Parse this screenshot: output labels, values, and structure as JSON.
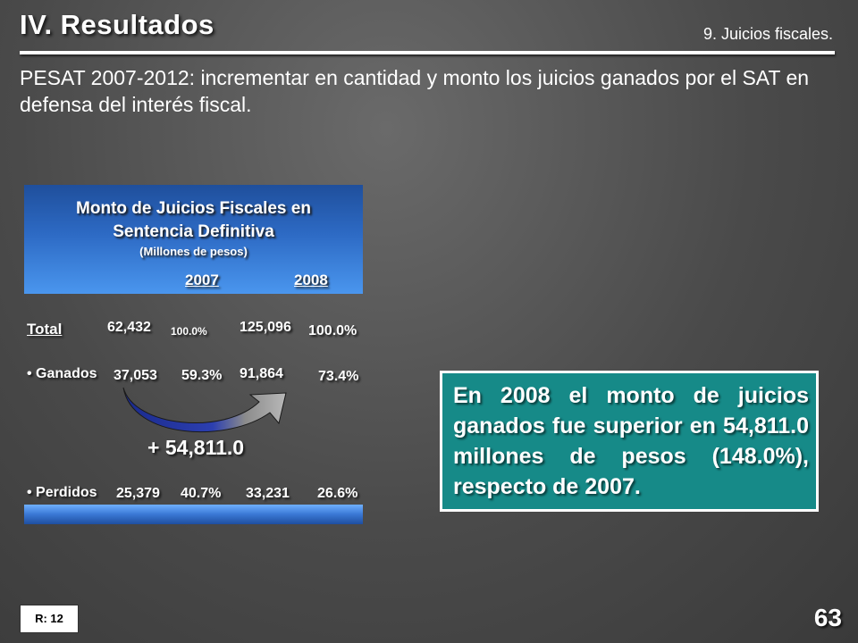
{
  "header": {
    "title": "IV. Resultados",
    "section": "9. Juicios fiscales."
  },
  "intro": "PESAT 2007-2012: incrementar en cantidad y monto los juicios ganados por el SAT en defensa del interés fiscal.",
  "table": {
    "title_line1": "Monto de Juicios Fiscales en",
    "title_line2": "Sentencia Definitiva",
    "unit": "(Millones de pesos)",
    "years": [
      "2007",
      "2008"
    ],
    "rows": [
      {
        "label": "Total",
        "v2007": "62,432",
        "p2007": "100.0%",
        "v2008": "125,096",
        "p2008": "100.0%"
      },
      {
        "label": "• Ganados",
        "v2007": "37,053",
        "p2007": "59.3%",
        "v2008": "91,864",
        "p2008": "73.4%"
      },
      {
        "label": "• Perdidos",
        "v2007": "25,379",
        "p2007": "40.7%",
        "v2008": "33,231",
        "p2008": "26.6%"
      }
    ],
    "difference": "+ 54,811.0"
  },
  "callout": "En 2008 el monto de juicios ganados fue superior en 54,811.0 millones de pesos (148.0%), respecto de 2007.",
  "footer": {
    "ref": "R: 12",
    "page": "63"
  },
  "colors": {
    "header_blue": "#2d6ac4",
    "callout_teal": "#168a88",
    "arrow_blue": "#1f2c9c",
    "arrow_grey": "#9a9a9a"
  }
}
